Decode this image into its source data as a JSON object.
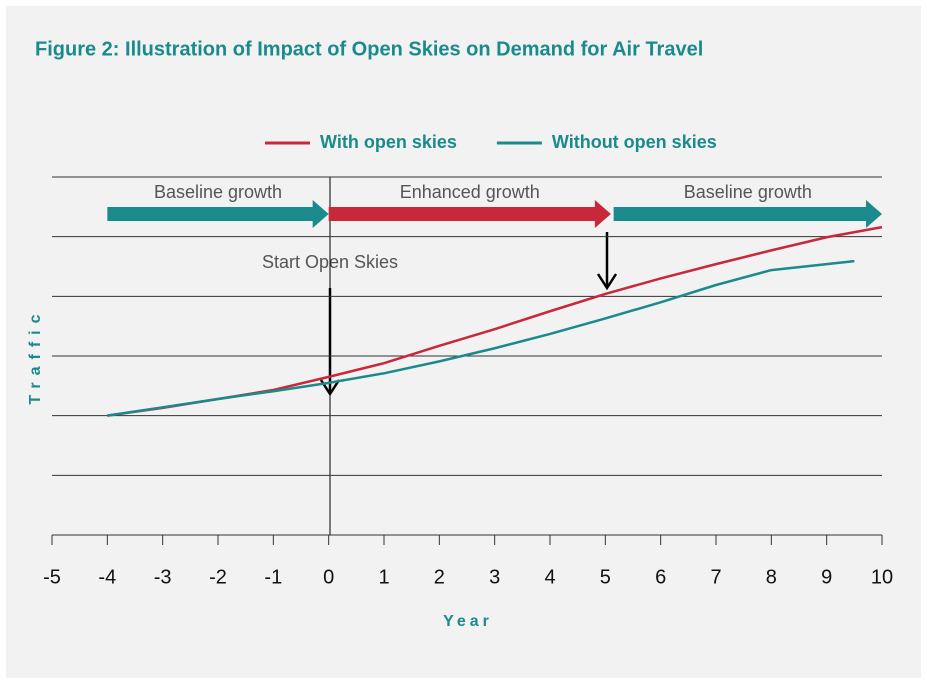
{
  "chart_data": {
    "type": "line",
    "title": "Figure 2: Illustration of Impact of Open Skies on Demand for Air Travel",
    "x_label": "Year",
    "y_label": "Traffic",
    "xlim": [
      -5,
      10
    ],
    "xticks": [
      -5,
      -4,
      -3,
      -2,
      -1,
      0,
      1,
      2,
      3,
      4,
      5,
      6,
      7,
      8,
      9,
      10
    ],
    "ylim": [
      0,
      6
    ],
    "yticks": [
      1,
      2,
      3,
      4,
      5,
      6
    ],
    "grid": true,
    "series": [
      {
        "name": "With open skies",
        "color": "#c8283a",
        "x": [
          -4,
          -3,
          -2,
          -1,
          0,
          1,
          2,
          3,
          4,
          5,
          6,
          7,
          8,
          9,
          10
        ],
        "values": [
          2.0,
          2.13,
          2.28,
          2.43,
          2.65,
          2.88,
          3.17,
          3.45,
          3.75,
          4.04,
          4.3,
          4.54,
          4.77,
          4.99,
          5.16
        ]
      },
      {
        "name": "Without open skies",
        "color": "#1a8a8c",
        "x": [
          -4,
          -3,
          -2,
          -1,
          0,
          1,
          2,
          3,
          4,
          5,
          6,
          7,
          8,
          9,
          9.5
        ],
        "values": [
          2.0,
          2.14,
          2.28,
          2.41,
          2.55,
          2.71,
          2.91,
          3.13,
          3.37,
          3.63,
          3.9,
          4.19,
          4.44,
          4.54,
          4.59
        ]
      }
    ],
    "phases": [
      {
        "label": "Baseline growth",
        "from": -4,
        "to": 0,
        "color": "#1a8a8c"
      },
      {
        "label": "Enhanced growth",
        "from": 0,
        "to": 5.1,
        "color": "#c8283a"
      },
      {
        "label": "Baseline growth",
        "from": 5.15,
        "to": 10,
        "color": "#1a8a8c"
      }
    ],
    "annotation": "Start Open Skies"
  }
}
